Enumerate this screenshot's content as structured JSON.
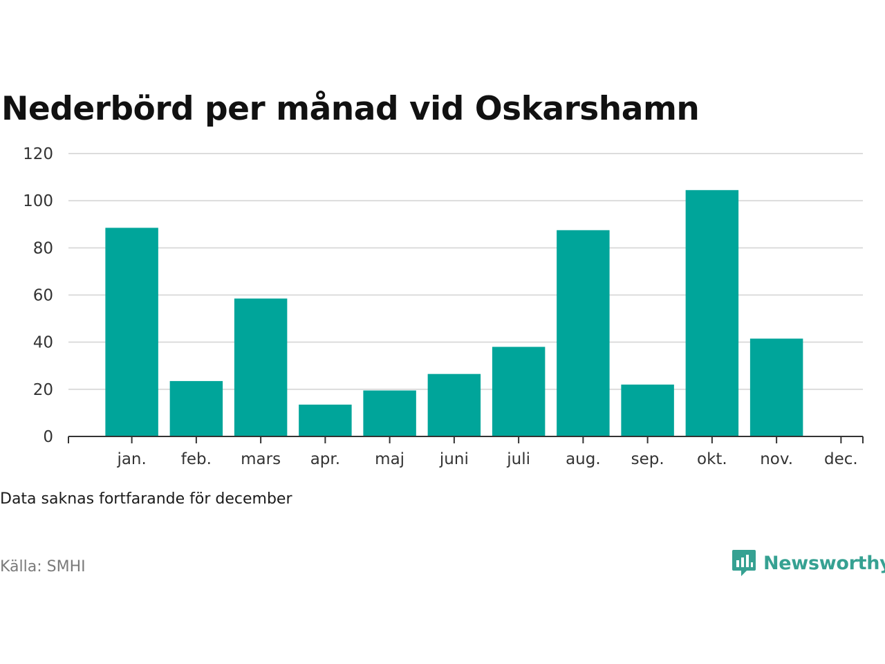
{
  "title": "Nederbörd per månad vid Oskarshamn",
  "note": "Data saknas fortfarande för december",
  "source": "Källa: SMHI",
  "brand": {
    "name": "Newsworthy",
    "color": "#36a192",
    "icon": "newsworthy-logo-icon"
  },
  "colors": {
    "bar": "#00a59a",
    "grid": "#dcdcdc",
    "axis": "#333333"
  },
  "chart_data": {
    "type": "bar",
    "categories": [
      "jan.",
      "feb.",
      "mars",
      "apr.",
      "maj",
      "juni",
      "juli",
      "aug.",
      "sep.",
      "okt.",
      "nov.",
      "dec."
    ],
    "values": [
      88.5,
      23.5,
      58.5,
      13.5,
      19.5,
      26.5,
      38,
      87.5,
      22,
      104.5,
      41.5,
      null
    ],
    "ylim": [
      0,
      120
    ],
    "yticks": [
      0,
      20,
      40,
      60,
      80,
      100,
      120
    ],
    "title": "Nederbörd per månad vid Oskarshamn",
    "xlabel": "",
    "ylabel": "",
    "grid": true,
    "legend": "none"
  }
}
